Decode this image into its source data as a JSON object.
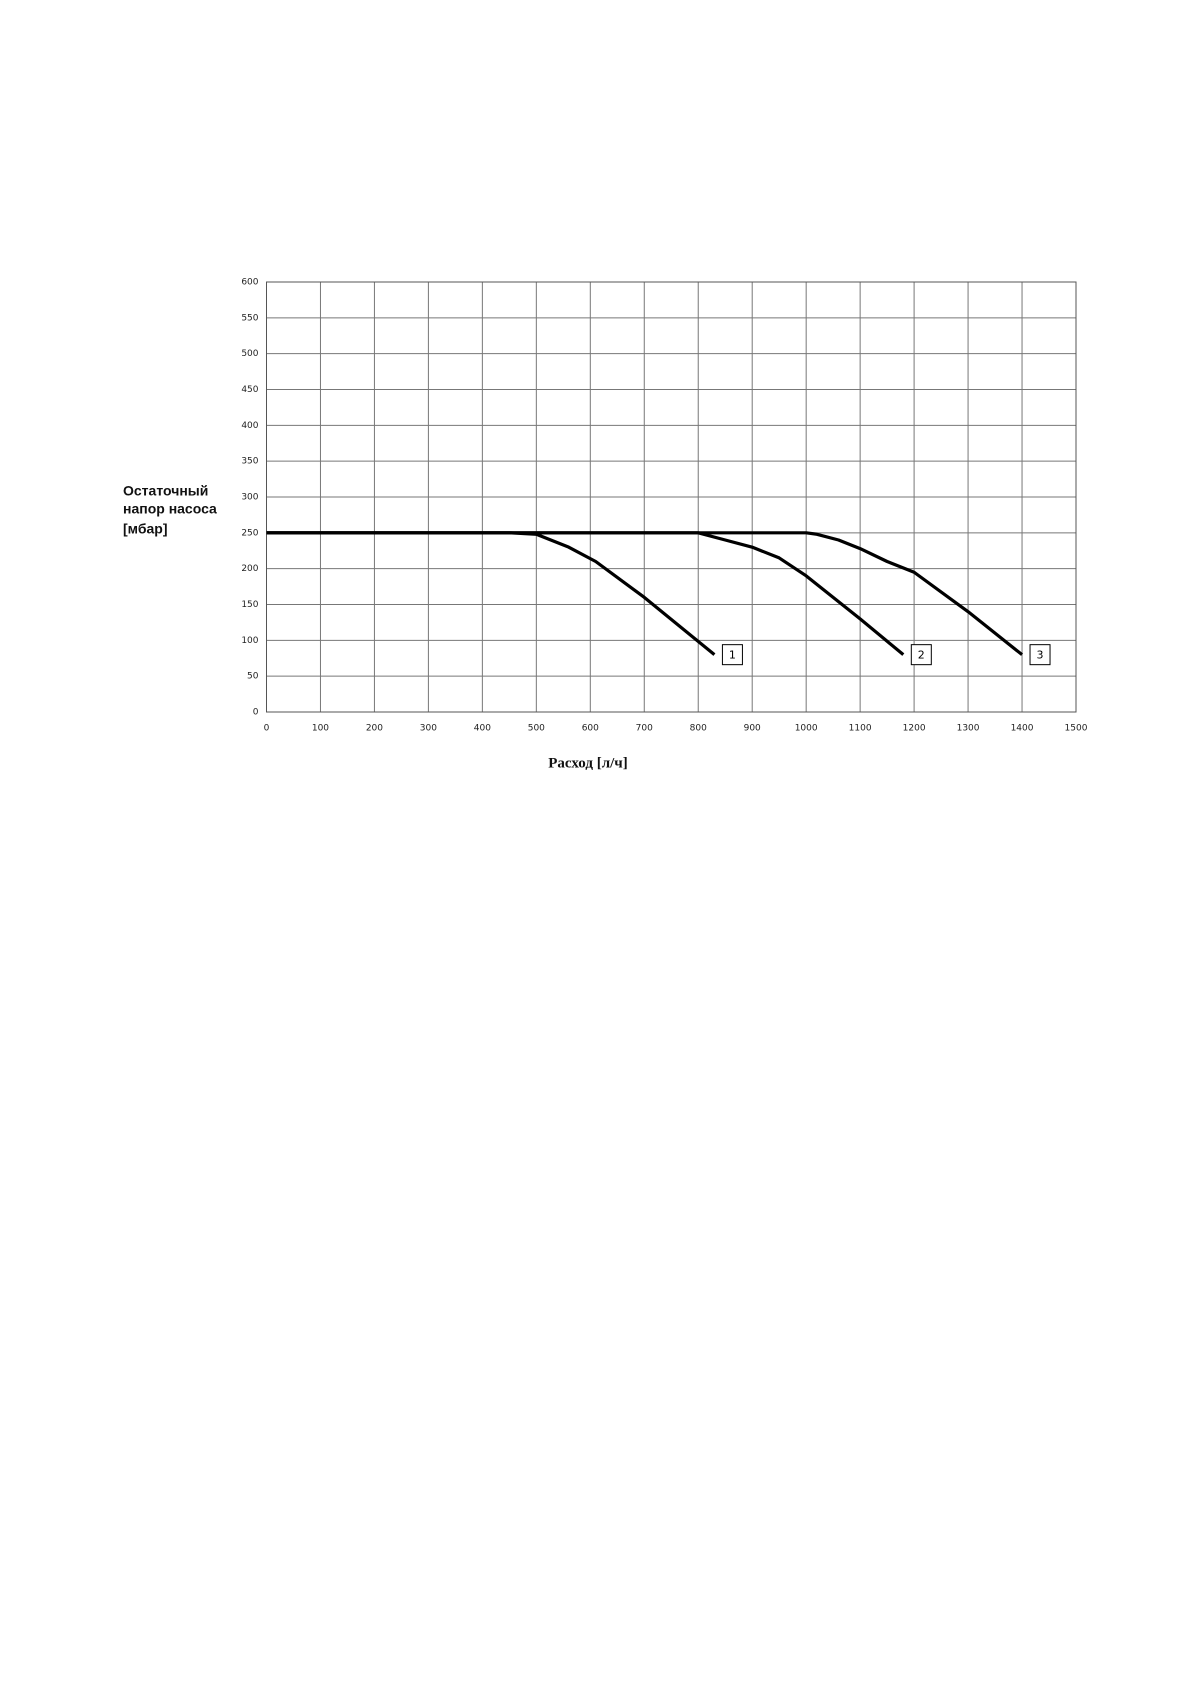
{
  "chart_data": {
    "type": "line",
    "y_label": [
      "Остаточный",
      "напор насоса",
      "[мбар]"
    ],
    "x_label": "Расход [л/ч]",
    "xlim": [
      0,
      1500
    ],
    "xticks": [
      0,
      100,
      200,
      300,
      400,
      500,
      600,
      700,
      800,
      900,
      1000,
      1100,
      1200,
      1300,
      1400,
      1500
    ],
    "ylim": [
      0,
      600
    ],
    "yticks": [
      0,
      50,
      100,
      150,
      200,
      250,
      300,
      350,
      400,
      450,
      500,
      550,
      600
    ],
    "grid": true,
    "series": [
      {
        "name": "1",
        "color": "#000000",
        "x": [
          0,
          450,
          500,
          560,
          610,
          700,
          830
        ],
        "values": [
          250,
          250,
          248,
          230,
          210,
          160,
          80
        ]
      },
      {
        "name": "2",
        "color": "#000000",
        "x": [
          0,
          800,
          850,
          900,
          950,
          1000,
          1100,
          1180
        ],
        "values": [
          250,
          250,
          240,
          230,
          215,
          190,
          130,
          80
        ]
      },
      {
        "name": "3",
        "color": "#000000",
        "x": [
          0,
          1000,
          1020,
          1060,
          1100,
          1150,
          1200,
          1300,
          1400
        ],
        "values": [
          250,
          250,
          248,
          240,
          228,
          210,
          195,
          140,
          80
        ]
      }
    ]
  }
}
